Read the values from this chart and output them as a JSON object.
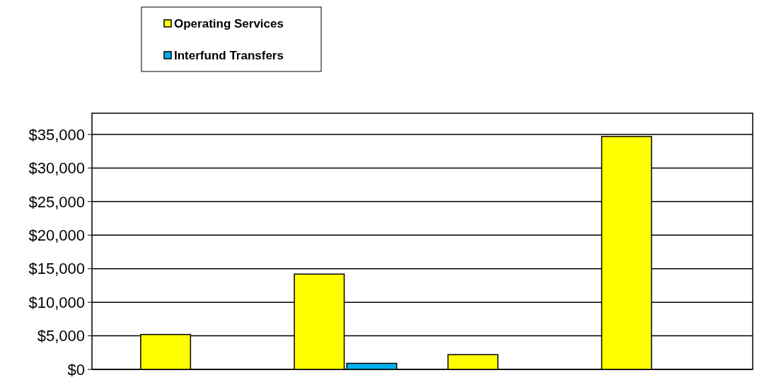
{
  "chart_data": {
    "type": "bar",
    "categories": [
      null,
      null,
      null,
      null
    ],
    "series": [
      {
        "name": "Operating Services",
        "color": "#ffff00",
        "values": [
          5200,
          14200,
          2200,
          34700
        ]
      },
      {
        "name": "Interfund Transfers",
        "color": "#00b0f0",
        "values": [
          0,
          900,
          0,
          0
        ]
      }
    ],
    "ylim": [
      0,
      35000
    ],
    "yticks": [
      {
        "value": 0,
        "label": "$0"
      },
      {
        "value": 5000,
        "label": "$5,000"
      },
      {
        "value": 10000,
        "label": "$10,000"
      },
      {
        "value": 15000,
        "label": "$15,000"
      },
      {
        "value": 20000,
        "label": "$20,000"
      },
      {
        "value": 25000,
        "label": "$25,000"
      },
      {
        "value": 30000,
        "label": "$30,000"
      },
      {
        "value": 35000,
        "label": "$35,000"
      }
    ],
    "grid": "y",
    "legend": "top left"
  }
}
